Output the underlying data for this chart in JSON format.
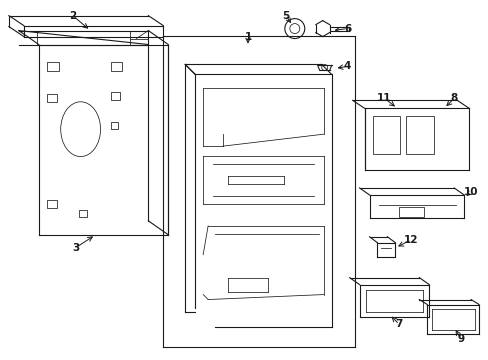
{
  "bg_color": "#ffffff",
  "lc": "#1a1a1a",
  "lw": 0.8,
  "tlw": 0.55,
  "figsize": [
    4.89,
    3.6
  ],
  "dpi": 100
}
